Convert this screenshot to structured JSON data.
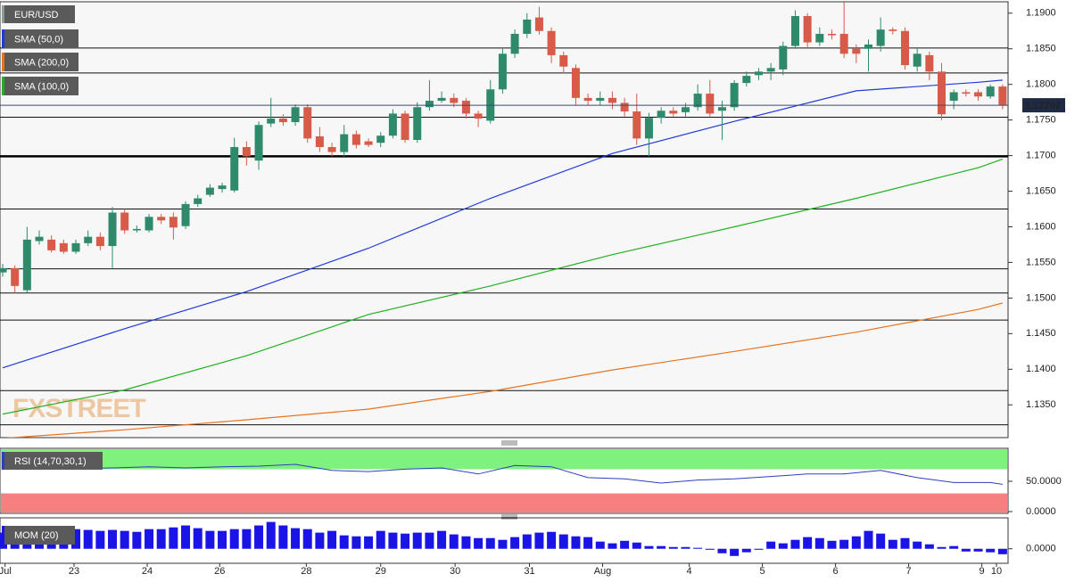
{
  "chart_data": [
    {
      "type": "candlestick",
      "title": "EUR/USD",
      "watermark": "FXSTREET",
      "up_color": "#2f8a6c",
      "down_color": "#d85a48",
      "open": [
        1.1536,
        1.1542,
        1.1511,
        1.158,
        1.1582,
        1.1577,
        1.1565,
        1.1577,
        1.1586,
        1.1573,
        1.162,
        1.1595,
        1.1595,
        1.1614,
        1.1614,
        1.1601,
        1.1632,
        1.1645,
        1.1653,
        1.1651,
        1.1712,
        1.1693,
        1.1745,
        1.1752,
        1.1747,
        1.1768,
        1.1727,
        1.1712,
        1.1705,
        1.173,
        1.172,
        1.1718,
        1.1728,
        1.1759,
        1.1722,
        1.1768,
        1.1777,
        1.1781,
        1.1777,
        1.1759,
        1.1749,
        1.1793,
        1.1843,
        1.1871,
        1.1894,
        1.1875,
        1.1841,
        1.1823,
        1.1781,
        1.1777,
        1.1781,
        1.1774,
        1.1762,
        1.1724,
        1.1753,
        1.1763,
        1.1761,
        1.1768,
        1.1787,
        1.1763,
        1.1768,
        1.1802,
        1.1813,
        1.1818,
        1.1821,
        1.1854,
        1.1896,
        1.1859,
        1.1871,
        1.1871,
        1.185,
        1.185,
        1.1854,
        1.1877,
        1.1875,
        1.1825,
        1.1841,
        1.1818,
        1.1777,
        1.1789,
        1.1789,
        1.1783,
        1.1797
      ],
      "high": [
        1.1548,
        1.1546,
        1.16,
        1.1595,
        1.1588,
        1.1582,
        1.1582,
        1.1595,
        1.1592,
        1.1628,
        1.1625,
        1.1602,
        1.1618,
        1.1618,
        1.162,
        1.1636,
        1.1645,
        1.166,
        1.1662,
        1.1725,
        1.172,
        1.1748,
        1.1781,
        1.1758,
        1.1772,
        1.1772,
        1.174,
        1.1718,
        1.1743,
        1.1735,
        1.1724,
        1.1733,
        1.1765,
        1.1763,
        1.1775,
        1.1806,
        1.179,
        1.1787,
        1.1781,
        1.1763,
        1.1806,
        1.185,
        1.1877,
        1.19,
        1.1909,
        1.188,
        1.1846,
        1.1828,
        1.1787,
        1.179,
        1.179,
        1.1781,
        1.1787,
        1.176,
        1.1768,
        1.1768,
        1.1774,
        1.18,
        1.1806,
        1.1777,
        1.1806,
        1.1818,
        1.1823,
        1.183,
        1.186,
        1.1904,
        1.19,
        1.188,
        1.1877,
        1.1916,
        1.1856,
        1.1863,
        1.1894,
        1.188,
        1.188,
        1.185,
        1.1846,
        1.183,
        1.1793,
        1.1793,
        1.1793,
        1.18,
        1.18
      ],
      "low": [
        1.153,
        1.1507,
        1.1507,
        1.1575,
        1.1564,
        1.1562,
        1.1562,
        1.1573,
        1.1567,
        1.1542,
        1.159,
        1.1592,
        1.1592,
        1.1604,
        1.1582,
        1.1597,
        1.1628,
        1.1642,
        1.1648,
        1.1648,
        1.1686,
        1.168,
        1.174,
        1.1742,
        1.1742,
        1.1718,
        1.1705,
        1.1699,
        1.1699,
        1.171,
        1.1712,
        1.1712,
        1.1724,
        1.1718,
        1.1718,
        1.1763,
        1.1774,
        1.1768,
        1.1752,
        1.174,
        1.1745,
        1.1787,
        1.1837,
        1.1865,
        1.187,
        1.183,
        1.1815,
        1.1771,
        1.1771,
        1.1771,
        1.1765,
        1.1755,
        1.1715,
        1.1699,
        1.1745,
        1.1755,
        1.1755,
        1.1763,
        1.1755,
        1.1722,
        1.1763,
        1.1797,
        1.1806,
        1.1806,
        1.1813,
        1.185,
        1.185,
        1.1854,
        1.1863,
        1.1837,
        1.183,
        1.1818,
        1.1846,
        1.187,
        1.1821,
        1.1818,
        1.1806,
        1.175,
        1.1765,
        1.1783,
        1.1777,
        1.178,
        1.1765
      ],
      "close": [
        1.1542,
        1.1517,
        1.1582,
        1.1586,
        1.1567,
        1.1565,
        1.1577,
        1.1586,
        1.1573,
        1.162,
        1.1595,
        1.1597,
        1.1614,
        1.1609,
        1.1599,
        1.1632,
        1.164,
        1.1655,
        1.1658,
        1.1712,
        1.1699,
        1.1743,
        1.1752,
        1.1747,
        1.1768,
        1.1724,
        1.1712,
        1.1705,
        1.173,
        1.1715,
        1.1715,
        1.1728,
        1.1759,
        1.1722,
        1.1768,
        1.1777,
        1.1781,
        1.1774,
        1.1759,
        1.1752,
        1.1793,
        1.1843,
        1.1871,
        1.1891,
        1.1875,
        1.1841,
        1.1825,
        1.1781,
        1.1777,
        1.1781,
        1.1774,
        1.1762,
        1.1724,
        1.1753,
        1.1763,
        1.1759,
        1.1768,
        1.1787,
        1.1759,
        1.1768,
        1.1802,
        1.1812,
        1.1818,
        1.1823,
        1.1854,
        1.1896,
        1.1859,
        1.1871,
        1.1869,
        1.1843,
        1.1843,
        1.1856,
        1.1877,
        1.1875,
        1.1827,
        1.1843,
        1.1818,
        1.1758,
        1.1789,
        1.1787,
        1.1783,
        1.1797,
        1.1771
      ],
      "series": [
        {
          "name": "SMA (50,0)",
          "color": "#1e3ad9",
          "x": [
            0,
            10,
            20,
            30,
            40,
            50,
            60,
            70,
            80,
            82
          ],
          "values": [
            1.1402,
            1.1457,
            1.1509,
            1.157,
            1.164,
            1.1703,
            1.1748,
            1.1791,
            1.1803,
            1.1806
          ]
        },
        {
          "name": "SMA (200,0)",
          "color": "#e8731e",
          "x": [
            0,
            10,
            20,
            30,
            40,
            50,
            60,
            70,
            80,
            82
          ],
          "values": [
            1.1303,
            1.1315,
            1.1329,
            1.1344,
            1.1369,
            1.1399,
            1.1425,
            1.1452,
            1.1484,
            1.1493
          ]
        },
        {
          "name": "SMA (100,0)",
          "color": "#22b022",
          "x": [
            0,
            10,
            20,
            30,
            40,
            50,
            60,
            70,
            80,
            82
          ],
          "values": [
            1.1337,
            1.1371,
            1.1419,
            1.1477,
            1.1517,
            1.1561,
            1.16,
            1.164,
            1.1683,
            1.1695
          ]
        }
      ],
      "levels": [
        1.1851,
        1.1816,
        1.1754,
        1.1625,
        1.1541,
        1.1507,
        1.1469,
        1.137,
        1.1322
      ],
      "key_level": 1.1699,
      "last_price": 1.17707,
      "xlim": [
        -0.22,
        82.45
      ],
      "ylim": [
        1.1304,
        1.1916
      ],
      "yticks": [
        {
          "value": 1.19,
          "label": "1.1900"
        },
        {
          "value": 1.185,
          "label": "1.1850"
        },
        {
          "value": 1.18,
          "label": "1.1800"
        },
        {
          "value": 1.175,
          "label": "1.1750"
        },
        {
          "value": 1.17,
          "label": "1.1700"
        },
        {
          "value": 1.165,
          "label": "1.1650"
        },
        {
          "value": 1.16,
          "label": "1.1600"
        },
        {
          "value": 1.155,
          "label": "1.1550"
        },
        {
          "value": 1.15,
          "label": "1.1500"
        },
        {
          "value": 1.145,
          "label": "1.1450"
        },
        {
          "value": 1.14,
          "label": "1.1400"
        },
        {
          "value": 1.135,
          "label": "1.1350"
        }
      ],
      "xticks": [
        {
          "value": 0.2,
          "label": "Jul"
        },
        {
          "value": 5.85,
          "label": "23"
        },
        {
          "value": 11.85,
          "label": "24"
        },
        {
          "value": 17.8,
          "label": "26"
        },
        {
          "value": 24.9,
          "label": "28"
        },
        {
          "value": 31,
          "label": "29"
        },
        {
          "value": 37.1,
          "label": "30"
        },
        {
          "value": 43.2,
          "label": "31"
        },
        {
          "value": 49.2,
          "label": "Aug"
        },
        {
          "value": 56.3,
          "label": "4"
        },
        {
          "value": 62.3,
          "label": "5"
        },
        {
          "value": 68.3,
          "label": "6"
        },
        {
          "value": 74.3,
          "label": "7"
        },
        {
          "value": 80.3,
          "label": "9"
        },
        {
          "value": 81.5,
          "label": "10"
        }
      ]
    },
    {
      "type": "line",
      "title": "RSI (14,70,30,1)",
      "overbought": 70,
      "oversold": 30,
      "band_colors": [
        "#7ef27c",
        "#f77f7f"
      ],
      "series": [
        {
          "name": "RSI (14,70,30,1)",
          "color": "#2b3fc2",
          "x": [
            0,
            3,
            6,
            9,
            12,
            15,
            18,
            21,
            24,
            27,
            30,
            33,
            36,
            39,
            42,
            45,
            48,
            51,
            54,
            57,
            60,
            63,
            66,
            69,
            72,
            75,
            78,
            81,
            82
          ],
          "values": [
            73,
            75,
            71,
            72,
            74,
            72,
            74,
            75,
            78,
            68,
            66,
            70,
            72,
            62,
            76,
            74,
            56,
            54,
            47,
            52,
            54,
            58,
            62,
            62,
            68,
            56,
            48,
            48,
            45
          ]
        }
      ],
      "xlim": [
        -0.22,
        82.45
      ],
      "ylim": [
        0,
        100
      ],
      "yticks": [
        {
          "value": 50,
          "label": "50.0000"
        },
        {
          "value": 0,
          "label": "0.0000"
        }
      ]
    },
    {
      "type": "bar",
      "title": "MOM (20)",
      "color": "#1a14e6",
      "values": [
        0.0083,
        0.0083,
        0.0078,
        0.0083,
        0.0092,
        0.0092,
        0.0101,
        0.0097,
        0.0092,
        0.0097,
        0.0092,
        0.0087,
        0.0101,
        0.0101,
        0.011,
        0.012,
        0.0106,
        0.0092,
        0.0092,
        0.0101,
        0.0101,
        0.012,
        0.0138,
        0.012,
        0.0106,
        0.0101,
        0.0083,
        0.0092,
        0.0069,
        0.0064,
        0.0064,
        0.0092,
        0.0083,
        0.0078,
        0.0083,
        0.0083,
        0.0092,
        0.0074,
        0.0064,
        0.0055,
        0.0055,
        0.0046,
        0.006,
        0.0074,
        0.0083,
        0.0087,
        0.0074,
        0.0064,
        0.006,
        0.0037,
        0.0028,
        0.0041,
        0.0032,
        0.0014,
        0.0014,
        0.0009,
        0.0009,
        0.0005,
        -0.0005,
        -0.0023,
        -0.0037,
        -0.0018,
        -0.0005,
        0.0037,
        0.0028,
        0.0046,
        0.006,
        0.0055,
        0.0041,
        0.0046,
        0.0064,
        0.0092,
        0.0078,
        0.0046,
        0.0055,
        0.0037,
        0.0023,
        0.0009,
        0.0014,
        -0.0014,
        -0.0014,
        -0.0018,
        -0.0028
      ],
      "xlim": [
        -0.22,
        82.45
      ],
      "ylim": [
        -0.007,
        0.015
      ],
      "yticks": [
        {
          "value": 0,
          "label": "0.0000"
        }
      ]
    }
  ]
}
